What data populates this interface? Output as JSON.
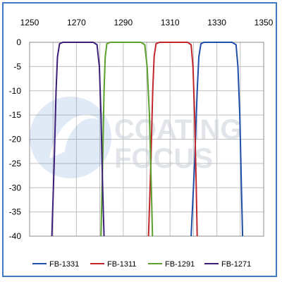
{
  "chart_data": {
    "type": "line",
    "title": "",
    "xlabel": "",
    "ylabel": "",
    "xlim": [
      1250,
      1350
    ],
    "ylim": [
      -40,
      0
    ],
    "x_ticks": [
      1250,
      1270,
      1290,
      1310,
      1330,
      1350
    ],
    "y_ticks": [
      0,
      -5,
      -10,
      -15,
      -20,
      -25,
      -30,
      -35,
      -40
    ],
    "x_axis_position": "top",
    "grid": true,
    "legend_position": "bottom",
    "series": [
      {
        "name": "FB-1331",
        "color": "#1f4ea8",
        "points": [
          [
            1319,
            -40
          ],
          [
            1320.5,
            -25
          ],
          [
            1321.6,
            -10
          ],
          [
            1322.3,
            -3
          ],
          [
            1323.2,
            -0.3
          ],
          [
            1324.5,
            0
          ],
          [
            1336.5,
            0
          ],
          [
            1338.2,
            -0.5
          ],
          [
            1339,
            -5
          ],
          [
            1339.8,
            -15
          ],
          [
            1340.5,
            -30
          ],
          [
            1341,
            -40
          ]
        ]
      },
      {
        "name": "FB-1311",
        "color": "#c0272d",
        "points": [
          [
            1300.8,
            -40
          ],
          [
            1301.8,
            -25
          ],
          [
            1302.6,
            -10
          ],
          [
            1303.2,
            -3
          ],
          [
            1304,
            -0.3
          ],
          [
            1305.5,
            0
          ],
          [
            1317.5,
            0
          ],
          [
            1319,
            -0.5
          ],
          [
            1319.8,
            -5
          ],
          [
            1320.5,
            -15
          ],
          [
            1321.2,
            -30
          ],
          [
            1321.6,
            -40
          ]
        ]
      },
      {
        "name": "FB-1291",
        "color": "#5aa02c",
        "points": [
          [
            1280.5,
            -40
          ],
          [
            1281.2,
            -25
          ],
          [
            1281.8,
            -10
          ],
          [
            1282.3,
            -3
          ],
          [
            1283,
            -0.3
          ],
          [
            1284.5,
            0
          ],
          [
            1297.5,
            0
          ],
          [
            1299.2,
            -0.5
          ],
          [
            1300.2,
            -5
          ],
          [
            1301.2,
            -15
          ],
          [
            1302,
            -30
          ],
          [
            1302.5,
            -40
          ]
        ]
      },
      {
        "name": "FB-1271",
        "color": "#3b1e78",
        "points": [
          [
            1259.5,
            -40
          ],
          [
            1260.5,
            -25
          ],
          [
            1261.3,
            -10
          ],
          [
            1261.9,
            -3
          ],
          [
            1262.8,
            -0.3
          ],
          [
            1264.2,
            0
          ],
          [
            1277.2,
            0
          ],
          [
            1278.8,
            -0.5
          ],
          [
            1279.8,
            -5
          ],
          [
            1280.5,
            -15
          ],
          [
            1281.2,
            -30
          ],
          [
            1281.8,
            -40
          ]
        ]
      }
    ]
  },
  "watermark": {
    "line1": "COATING",
    "line2": "FOCUS",
    "logo_color": "#5b8fd0"
  }
}
